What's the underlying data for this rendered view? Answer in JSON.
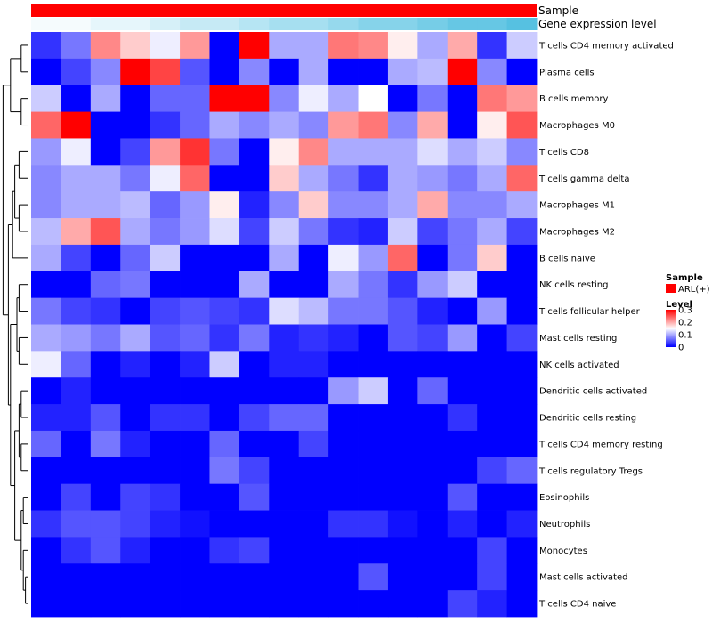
{
  "chart_data": {
    "type": "heatmap",
    "column_annotations": [
      {
        "name": "Sample",
        "colors": [
          "#ff0000"
        ]
      },
      {
        "name": "Gene expression level",
        "colors": [
          "#f5fbfd",
          "#e6f6fb",
          "#d6f0f8",
          "#c6eaf5",
          "#b6e5f3",
          "#a6dff0",
          "#96d9ed",
          "#86d3ea",
          "#76cde7",
          "#66c7e4",
          "#56c1e1"
        ]
      }
    ],
    "rows": [
      "T cells CD4 memory activated",
      "Plasma cells",
      "B cells memory",
      "Macrophages M0",
      "T cells CD8",
      "T cells gamma delta",
      "Macrophages M1",
      "Macrophages M2",
      "B cells naive",
      "NK cells resting",
      "T cells follicular helper",
      "Mast cells resting",
      "NK cells activated",
      "Dendritic cells activated",
      "Dendritic cells resting",
      "T cells CD4 memory resting",
      "T cells regulatory  Tregs",
      "Eosinophils",
      "Neutrophils",
      "Monocytes",
      "Mast cells activated",
      "T cells CD4 naive"
    ],
    "values": [
      [
        0.03,
        0.07,
        0.22,
        0.18,
        0.14,
        0.21,
        0.0,
        0.3,
        0.1,
        0.1,
        0.23,
        0.22,
        0.16,
        0.1,
        0.2,
        0.03,
        0.12
      ],
      [
        0.0,
        0.04,
        0.08,
        0.3,
        0.26,
        0.05,
        0.0,
        0.08,
        0.0,
        0.1,
        0.0,
        0.0,
        0.1,
        0.11,
        0.3,
        0.08,
        0.0
      ],
      [
        0.12,
        0.0,
        0.1,
        0.0,
        0.06,
        0.06,
        0.3,
        0.3,
        0.08,
        0.14,
        0.1,
        0.15,
        0.0,
        0.07,
        0.0,
        0.23,
        0.21
      ],
      [
        0.24,
        0.3,
        0.0,
        0.0,
        0.03,
        0.06,
        0.1,
        0.08,
        0.1,
        0.08,
        0.21,
        0.23,
        0.08,
        0.2,
        0.0,
        0.16,
        0.25
      ],
      [
        0.09,
        0.14,
        0.0,
        0.04,
        0.21,
        0.27,
        0.07,
        0.0,
        0.16,
        0.22,
        0.1,
        0.1,
        0.1,
        0.13,
        0.1,
        0.12,
        0.08
      ],
      [
        0.08,
        0.1,
        0.1,
        0.07,
        0.14,
        0.24,
        0.0,
        0.0,
        0.18,
        0.1,
        0.07,
        0.03,
        0.1,
        0.09,
        0.07,
        0.1,
        0.24
      ],
      [
        0.08,
        0.1,
        0.1,
        0.11,
        0.06,
        0.09,
        0.16,
        0.02,
        0.08,
        0.18,
        0.08,
        0.08,
        0.1,
        0.2,
        0.08,
        0.08,
        0.1
      ],
      [
        0.11,
        0.2,
        0.25,
        0.1,
        0.07,
        0.09,
        0.13,
        0.04,
        0.12,
        0.07,
        0.03,
        0.02,
        0.12,
        0.04,
        0.07,
        0.1,
        0.04
      ],
      [
        0.1,
        0.04,
        0.0,
        0.06,
        0.12,
        0.0,
        0.0,
        0.0,
        0.1,
        0.0,
        0.14,
        0.09,
        0.24,
        0.0,
        0.07,
        0.18,
        0.0
      ],
      [
        0.0,
        0.0,
        0.06,
        0.07,
        0.0,
        0.0,
        0.0,
        0.1,
        0.0,
        0.0,
        0.1,
        0.07,
        0.03,
        0.09,
        0.12,
        0.0,
        0.0
      ],
      [
        0.07,
        0.04,
        0.03,
        0.0,
        0.04,
        0.05,
        0.04,
        0.03,
        0.13,
        0.11,
        0.07,
        0.07,
        0.05,
        0.02,
        0.0,
        0.09,
        0.0
      ],
      [
        0.1,
        0.09,
        0.07,
        0.1,
        0.05,
        0.06,
        0.03,
        0.07,
        0.02,
        0.03,
        0.02,
        0.0,
        0.05,
        0.04,
        0.09,
        0.0,
        0.04
      ],
      [
        0.14,
        0.06,
        0.0,
        0.02,
        0.0,
        0.02,
        0.12,
        0.0,
        0.02,
        0.02,
        0.0,
        0.0,
        0.0,
        0.0,
        0.0,
        0.0,
        0.0
      ],
      [
        0.0,
        0.02,
        0.0,
        0.0,
        0.0,
        0.0,
        0.0,
        0.0,
        0.0,
        0.0,
        0.09,
        0.12,
        0.0,
        0.06,
        0.0,
        0.0,
        0.0
      ],
      [
        0.02,
        0.02,
        0.05,
        0.0,
        0.03,
        0.03,
        0.0,
        0.04,
        0.06,
        0.06,
        0.0,
        0.0,
        0.0,
        0.0,
        0.03,
        0.0,
        0.0
      ],
      [
        0.06,
        0.0,
        0.07,
        0.02,
        0.0,
        0.0,
        0.06,
        0.0,
        0.0,
        0.04,
        0.0,
        0.0,
        0.0,
        0.0,
        0.0,
        0.0,
        0.0
      ],
      [
        0.0,
        0.0,
        0.0,
        0.0,
        0.0,
        0.0,
        0.07,
        0.04,
        0.0,
        0.0,
        0.0,
        0.0,
        0.0,
        0.0,
        0.0,
        0.04,
        0.06
      ],
      [
        0.0,
        0.04,
        0.0,
        0.04,
        0.03,
        0.0,
        0.0,
        0.05,
        0.0,
        0.0,
        0.0,
        0.0,
        0.0,
        0.0,
        0.05,
        0.0,
        0.0
      ],
      [
        0.03,
        0.05,
        0.05,
        0.04,
        0.02,
        0.01,
        0.0,
        0.0,
        0.0,
        0.0,
        0.03,
        0.03,
        0.01,
        0.0,
        0.02,
        0.0,
        0.02
      ],
      [
        0.0,
        0.03,
        0.05,
        0.02,
        0.0,
        0.0,
        0.03,
        0.04,
        0.0,
        0.0,
        0.0,
        0.0,
        0.0,
        0.0,
        0.0,
        0.04,
        0.0
      ],
      [
        0.0,
        0.0,
        0.0,
        0.0,
        0.0,
        0.0,
        0.0,
        0.0,
        0.0,
        0.0,
        0.0,
        0.05,
        0.0,
        0.0,
        0.0,
        0.04,
        0.0
      ],
      [
        0.0,
        0.0,
        0.0,
        0.0,
        0.0,
        0.0,
        0.0,
        0.0,
        0.0,
        0.0,
        0.0,
        0.0,
        0.0,
        0.0,
        0.04,
        0.02,
        0.0
      ]
    ],
    "color_scale": {
      "low": "#0000ff",
      "mid": "#ffffff",
      "high": "#ff0000",
      "min": 0,
      "mid_value": 0.15,
      "max": 0.3
    },
    "dendrogram": "rows",
    "legend": {
      "sample_title": "Sample",
      "sample_entry": "ARL(+)",
      "sample_color": "#ff0000",
      "level_title": "Level",
      "level_ticks": [
        0.3,
        0.2,
        0.1,
        0
      ]
    }
  }
}
